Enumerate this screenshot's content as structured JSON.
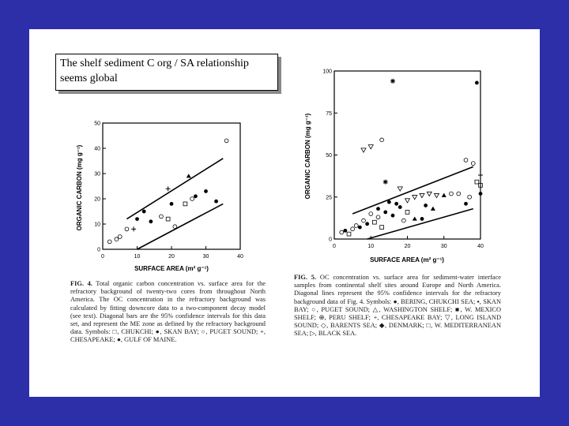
{
  "slide": {
    "title_lines": [
      "The shelf sediment C org / SA relationship",
      "seems global"
    ]
  },
  "chart_data": [
    {
      "type": "scatter",
      "title": "",
      "xlabel": "SURFACE AREA (m² g⁻¹)",
      "ylabel": "ORGANIC CARBON (mg g⁻¹)",
      "xlim": [
        0,
        40
      ],
      "ylim": [
        0,
        50
      ],
      "xticks": [
        "0",
        "10",
        "20",
        "30",
        "40"
      ],
      "yticks": [
        "0",
        "10",
        "20",
        "30",
        "40",
        "50"
      ],
      "points": [
        {
          "x": 2,
          "y": 3,
          "m": "o"
        },
        {
          "x": 4,
          "y": 4,
          "m": "o"
        },
        {
          "x": 5,
          "y": 5,
          "m": "o"
        },
        {
          "x": 7,
          "y": 8,
          "m": "o"
        },
        {
          "x": 10,
          "y": 12,
          "m": "f"
        },
        {
          "x": 12,
          "y": 15,
          "m": "f"
        },
        {
          "x": 14,
          "y": 11,
          "m": "f"
        },
        {
          "x": 20,
          "y": 18,
          "m": "f"
        },
        {
          "x": 30,
          "y": 23,
          "m": "f"
        },
        {
          "x": 33,
          "y": 19,
          "m": "f"
        },
        {
          "x": 25,
          "y": 29,
          "m": "t"
        },
        {
          "x": 19,
          "y": 12,
          "m": "s"
        },
        {
          "x": 24,
          "y": 18,
          "m": "s"
        },
        {
          "x": 26,
          "y": 20,
          "m": "o"
        },
        {
          "x": 21,
          "y": 9,
          "m": "o"
        },
        {
          "x": 36,
          "y": 43,
          "m": "o"
        },
        {
          "x": 19,
          "y": 24,
          "m": "+"
        },
        {
          "x": 9,
          "y": 8,
          "m": "+"
        },
        {
          "x": 27,
          "y": 21,
          "m": "f"
        },
        {
          "x": 17,
          "y": 13,
          "m": "o"
        }
      ],
      "confidence_lines": [
        {
          "x": [
            7,
            35
          ],
          "y": [
            12,
            36
          ]
        },
        {
          "x": [
            10,
            35
          ],
          "y": [
            0,
            18
          ]
        }
      ],
      "caption_label": "FIG. 4.",
      "caption": "Total organic carbon concentration vs. surface area for the refractory background of twenty-two cores from throughout North America. The OC concentration in the refractory background was calculated by fitting downcore data to a two-component decay model (see text). Diagonal bars are the 95% confidence intervals for this data set, and represent the ME zone as defined by the refractory background data. Symbols: □, CHUKCHI; ●, SKAN BAY; ○, PUGET SOUND; +, CHESAPEAKE; ●, GULF OF MAINE."
    },
    {
      "type": "scatter",
      "title": "",
      "xlabel": "SURFACE AREA (m² g⁻¹)",
      "ylabel": "ORGANIC CARBON (mg g⁻¹)",
      "xlim": [
        0,
        40
      ],
      "ylim": [
        0,
        100
      ],
      "xticks": [
        "0",
        "10",
        "20",
        "30",
        "40"
      ],
      "yticks": [
        "0",
        "25",
        "50",
        "75",
        "100"
      ],
      "points": [
        {
          "x": 16,
          "y": 94,
          "m": "*"
        },
        {
          "x": 39,
          "y": 93,
          "m": "f"
        },
        {
          "x": 8,
          "y": 53,
          "m": "v"
        },
        {
          "x": 10,
          "y": 55,
          "m": "v"
        },
        {
          "x": 13,
          "y": 59,
          "m": "o"
        },
        {
          "x": 36,
          "y": 47,
          "m": "o"
        },
        {
          "x": 38,
          "y": 45,
          "m": "o"
        },
        {
          "x": 14,
          "y": 34,
          "m": "*"
        },
        {
          "x": 18,
          "y": 30,
          "m": "v"
        },
        {
          "x": 40,
          "y": 38,
          "m": "+"
        },
        {
          "x": 39,
          "y": 34,
          "m": "s"
        },
        {
          "x": 40,
          "y": 32,
          "m": "s"
        },
        {
          "x": 15,
          "y": 22,
          "m": "f"
        },
        {
          "x": 17,
          "y": 21,
          "m": "f"
        },
        {
          "x": 20,
          "y": 23,
          "m": "v"
        },
        {
          "x": 22,
          "y": 25,
          "m": "v"
        },
        {
          "x": 24,
          "y": 26,
          "m": "v"
        },
        {
          "x": 26,
          "y": 27,
          "m": "v"
        },
        {
          "x": 28,
          "y": 26,
          "m": "v"
        },
        {
          "x": 30,
          "y": 26,
          "m": "t"
        },
        {
          "x": 32,
          "y": 27,
          "m": "o"
        },
        {
          "x": 34,
          "y": 27,
          "m": "o"
        },
        {
          "x": 37,
          "y": 25,
          "m": "o"
        },
        {
          "x": 40,
          "y": 27,
          "m": "f"
        },
        {
          "x": 36,
          "y": 21,
          "m": "f"
        },
        {
          "x": 12,
          "y": 18,
          "m": "f"
        },
        {
          "x": 14,
          "y": 16,
          "m": "f"
        },
        {
          "x": 16,
          "y": 14,
          "m": "f"
        },
        {
          "x": 18,
          "y": 19,
          "m": "f"
        },
        {
          "x": 20,
          "y": 16,
          "m": "s"
        },
        {
          "x": 22,
          "y": 12,
          "m": "t"
        },
        {
          "x": 25,
          "y": 20,
          "m": "f"
        },
        {
          "x": 27,
          "y": 18,
          "m": "t"
        },
        {
          "x": 10,
          "y": 15,
          "m": "o"
        },
        {
          "x": 8,
          "y": 11,
          "m": "o"
        },
        {
          "x": 9,
          "y": 9,
          "m": "f"
        },
        {
          "x": 11,
          "y": 10,
          "m": "s"
        },
        {
          "x": 7,
          "y": 7,
          "m": "f"
        },
        {
          "x": 5,
          "y": 6,
          "m": "o"
        },
        {
          "x": 3,
          "y": 5,
          "m": "f"
        },
        {
          "x": 2,
          "y": 4,
          "m": "o"
        },
        {
          "x": 4,
          "y": 3,
          "m": "s"
        },
        {
          "x": 6,
          "y": 8,
          "m": "o"
        },
        {
          "x": 12,
          "y": 13,
          "m": "o"
        },
        {
          "x": 13,
          "y": 7,
          "m": "s"
        },
        {
          "x": 19,
          "y": 11,
          "m": "o"
        },
        {
          "x": 24,
          "y": 12,
          "m": "f"
        }
      ],
      "confidence_lines": [
        {
          "x": [
            5,
            38
          ],
          "y": [
            15,
            43
          ]
        },
        {
          "x": [
            9,
            38
          ],
          "y": [
            0,
            18
          ]
        }
      ],
      "caption_label": "FIG. 5.",
      "caption": "OC concentration vs. surface area for sediment-water interface samples from continental shelf sites around Europe and North America. Diagonal lines represent the 95% confidence intervals for the refractory background data of Fig. 4. Symbols: ●, BERING, CHUKCHI SEA; ▪, SKAN BAY; ○, PUGET SOUND; △, WASHINGTON SHELF; ■, W. MEXICO SHELF; ⊕, PERU SHELF; +, CHESAPEAKE BAY; ▽, LONG ISLAND SOUND; ◇, BARENTS SEA; ◆, DENMARK; □, W. MEDITERRANEAN SEA; ▷, BLACK SEA."
    }
  ]
}
